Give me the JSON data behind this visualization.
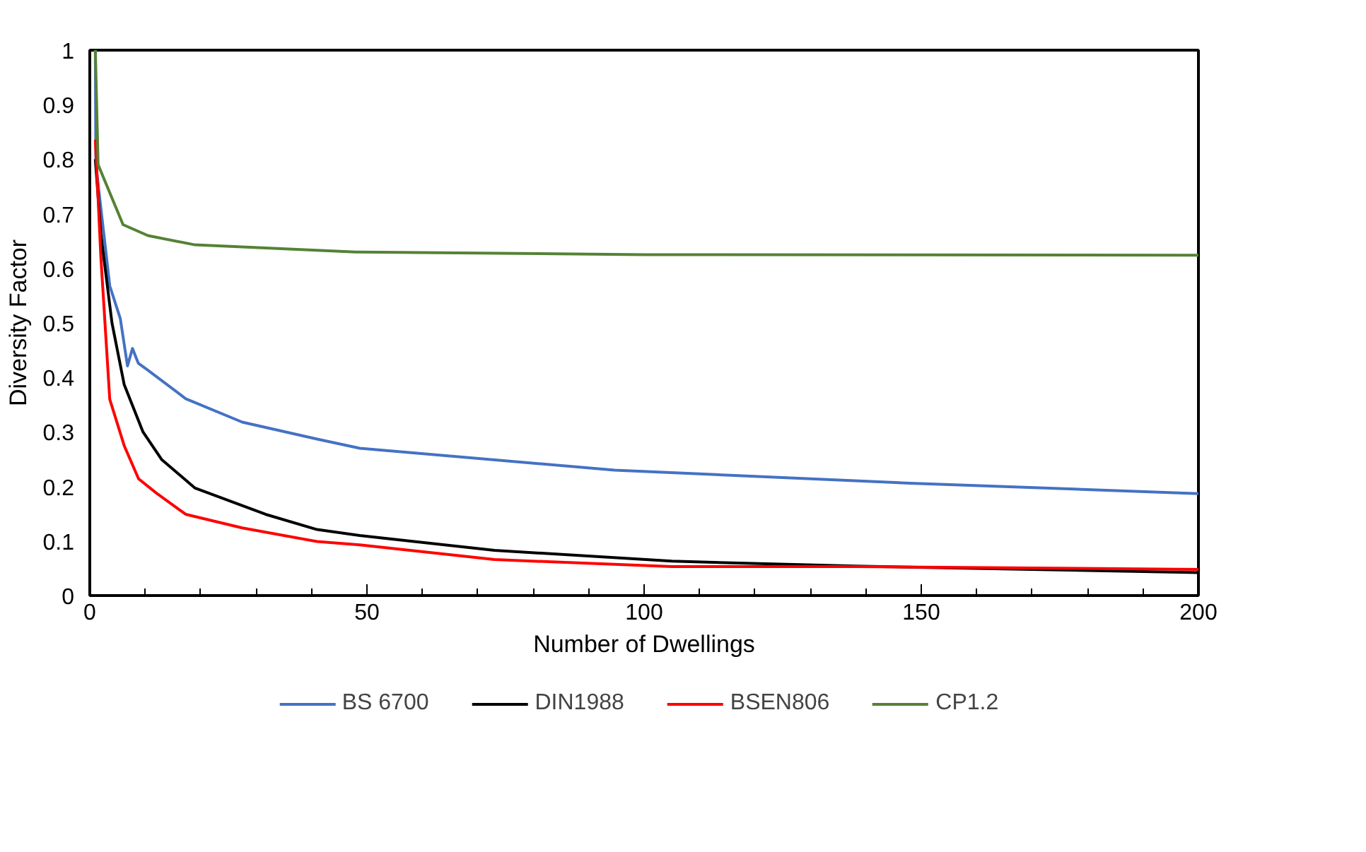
{
  "chart_data": {
    "type": "line",
    "xlabel": "Number of Dwellings",
    "ylabel": "Diversity Factor",
    "xlim": [
      0,
      200
    ],
    "xticks": [
      0,
      50,
      100,
      150,
      200
    ],
    "ylim": [
      0,
      1
    ],
    "yticks": [
      0,
      0.1,
      0.2,
      0.3,
      0.4,
      0.5,
      0.6,
      0.7,
      0.8,
      0.9,
      1
    ],
    "grid": false,
    "legend": "bottom",
    "marker": "none",
    "line_style": "solid",
    "series": [
      {
        "name": "BS 6700",
        "color": "#4472c4",
        "x": [
          1,
          1.1,
          3.6,
          5.5,
          6.8,
          7.7,
          8.75,
          10.5,
          17.3,
          27.5,
          41,
          48.7,
          94.7,
          148,
          200
        ],
        "values": [
          1,
          0.79,
          0.568,
          0.508,
          0.421,
          0.453,
          0.426,
          0.413,
          0.361,
          0.318,
          0.287,
          0.27,
          0.23,
          0.206,
          0.187
        ]
      },
      {
        "name": "DIN1988",
        "color": "#000000",
        "x": [
          1,
          2,
          4,
          6.2,
          9.6,
          13,
          19,
          31.7,
          41,
          48.7,
          73,
          105,
          138,
          200
        ],
        "values": [
          0.8,
          0.663,
          0.5,
          0.387,
          0.3,
          0.249,
          0.197,
          0.149,
          0.121,
          0.11,
          0.083,
          0.063,
          0.054,
          0.042
        ]
      },
      {
        "name": "BSEN806",
        "color": "#ff0000",
        "x": [
          1,
          2,
          3.6,
          6.2,
          8.8,
          12,
          17.3,
          27.5,
          41,
          48.7,
          73,
          105,
          138,
          200
        ],
        "values": [
          0.836,
          0.62,
          0.36,
          0.275,
          0.214,
          0.188,
          0.149,
          0.124,
          0.099,
          0.093,
          0.066,
          0.053,
          0.053,
          0.048
        ]
      },
      {
        "name": "CP1.2",
        "color": "#548235",
        "x": [
          1,
          1.5,
          6,
          10.5,
          19,
          48,
          100,
          200
        ],
        "values": [
          1,
          0.79,
          0.68,
          0.66,
          0.643,
          0.63,
          0.625,
          0.624
        ]
      }
    ]
  }
}
